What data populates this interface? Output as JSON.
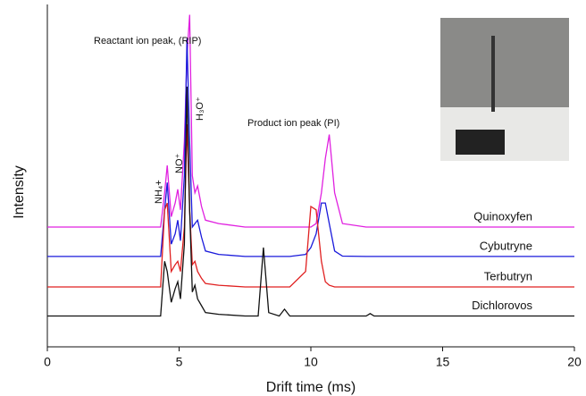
{
  "chart_data": {
    "type": "line",
    "x_label": "Drift time (ms)",
    "y_label": "Intensity",
    "annotations": [
      "Reactant ion peak, (RIP)",
      "Product ion peak (PI)",
      "NH₄+",
      "NO⁺",
      "H₃O⁺"
    ],
    "x": [
      0,
      4.3,
      4.45,
      4.55,
      4.7,
      4.85,
      4.95,
      5.05,
      5.2,
      5.3,
      5.4,
      5.5,
      5.6,
      5.7,
      5.85,
      6.0,
      6.5,
      7.5,
      8.0,
      8.2,
      8.4,
      8.8,
      9.0,
      9.2,
      9.8,
      10.0,
      10.2,
      10.4,
      10.55,
      10.7,
      10.9,
      11.2,
      12.1,
      12.25,
      12.4,
      20
    ],
    "series": [
      {
        "name": "Quinoxyfen",
        "color": "#e020e0",
        "values": [
          35,
          35,
          45,
          53,
          38,
          42,
          46,
          40,
          60,
          85,
          97,
          50,
          45,
          47,
          41,
          37,
          36,
          35,
          35,
          35,
          35,
          35,
          35,
          35,
          35,
          35,
          36,
          45,
          55,
          62,
          45,
          36,
          35,
          35,
          35,
          35
        ]
      },
      {
        "name": "Cybutryne",
        "color": "#1a1adb",
        "values": [
          26.4,
          26.4,
          40,
          48,
          30,
          33,
          37,
          31,
          50,
          90,
          60,
          35,
          36,
          37,
          32,
          28,
          27,
          26.4,
          26.4,
          26.4,
          26.4,
          26.4,
          26.4,
          26.4,
          27,
          29,
          33,
          42,
          42,
          36,
          28,
          26.5,
          26.4,
          26.4,
          26.4,
          26.4
        ]
      },
      {
        "name": "Terbutryn",
        "color": "#e02020",
        "values": [
          17.5,
          17.5,
          40,
          42,
          22,
          24,
          25,
          22,
          35,
          65,
          40,
          24,
          25,
          22,
          20,
          18.5,
          18,
          17.5,
          17.5,
          17.5,
          17.5,
          17.5,
          17.5,
          17.5,
          22,
          41,
          40,
          25,
          19,
          18,
          17.5,
          17.5,
          17.5,
          17.5,
          17.5,
          17.5
        ]
      },
      {
        "name": "Dichlorovos",
        "color": "#111111",
        "values": [
          9,
          9,
          25,
          22,
          13,
          17,
          19,
          14,
          30,
          76,
          40,
          16,
          18,
          14,
          12,
          10,
          9.5,
          9,
          9,
          29,
          10,
          9,
          11,
          9,
          9,
          9,
          9,
          9,
          9,
          9,
          9,
          9,
          9,
          9.7,
          9,
          9
        ]
      }
    ],
    "xlim": [
      0,
      20
    ],
    "xticks": [
      0,
      5,
      10,
      15,
      20
    ],
    "ylim": [
      0,
      100
    ]
  }
}
